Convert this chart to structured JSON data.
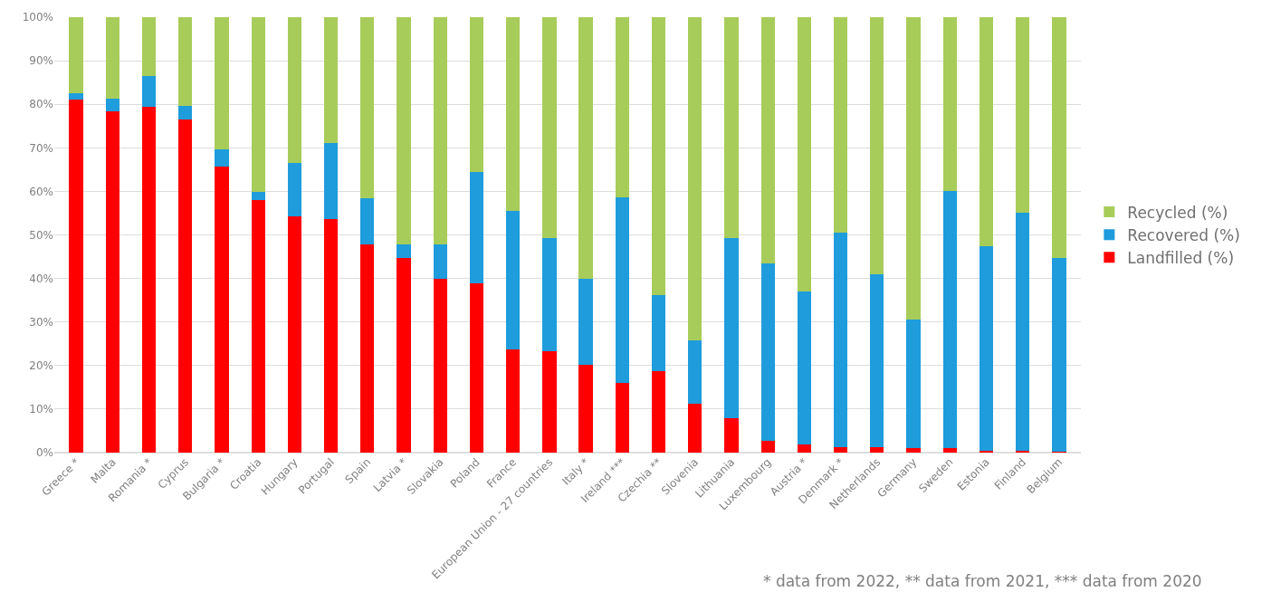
{
  "chart_data": {
    "type": "bar",
    "stacked": true,
    "categories": [
      "Greece *",
      "Malta",
      "Romania *",
      "Cyprus",
      "Bulgaria *",
      "Croatia",
      "Hungary",
      "Portugal",
      "Spain",
      "Latvia *",
      "Slovakia",
      "Poland",
      "France",
      "European Union - 27 countries",
      "Italy *",
      "Ireland ***",
      "Czechia **",
      "Slovenia",
      "Lithuania",
      "Luxembourg",
      "Austria *",
      "Denmark *",
      "Netherlands",
      "Germany",
      "Sweden",
      "Estonia",
      "Finland",
      "Belgium"
    ],
    "series": [
      {
        "name": "Landfilled (%)",
        "color": "#ff0000",
        "values": [
          81,
          78.3,
          79.5,
          76.5,
          65.8,
          58,
          54.2,
          53.6,
          47.8,
          44.6,
          40,
          38.8,
          23.8,
          23.2,
          20.1,
          16.1,
          18.8,
          11.3,
          7.8,
          2.6,
          1.9,
          1.3,
          1.3,
          1.0,
          1.0,
          0.4,
          0.4,
          0.2
        ]
      },
      {
        "name": "Recovered (%)",
        "color": "#1e9cdc",
        "values": [
          1.6,
          3.0,
          7.0,
          3.2,
          3.9,
          1.8,
          12.4,
          17.4,
          10.7,
          3.2,
          7.8,
          25.7,
          31.7,
          26.1,
          19.9,
          42.6,
          17.4,
          14.5,
          41.5,
          40.9,
          35.2,
          49.3,
          39.7,
          29.6,
          59.1,
          47.1,
          54.6,
          44.6
        ]
      },
      {
        "name": "Recycled (%)",
        "color": "#a8cc5a",
        "values": [
          17.4,
          18.7,
          13.5,
          20.3,
          30.3,
          40.2,
          33.4,
          29,
          41.5,
          52.2,
          52.2,
          35.5,
          44.5,
          50.7,
          60,
          41.3,
          63.8,
          74.2,
          50.7,
          56.5,
          62.9,
          49.4,
          59,
          69.4,
          39.9,
          52.5,
          45,
          55.2
        ]
      }
    ],
    "ylim": [
      0,
      100
    ],
    "yticks": [
      {
        "value": 0,
        "label": "0%"
      },
      {
        "value": 10,
        "label": "10%"
      },
      {
        "value": 20,
        "label": "20%"
      },
      {
        "value": 30,
        "label": "30%"
      },
      {
        "value": 40,
        "label": "40%"
      },
      {
        "value": 50,
        "label": "50%"
      },
      {
        "value": 60,
        "label": "60%"
      },
      {
        "value": 70,
        "label": "70%"
      },
      {
        "value": 80,
        "label": "80%"
      },
      {
        "value": 90,
        "label": "90%"
      },
      {
        "value": 100,
        "label": "100%"
      }
    ],
    "grid": "y",
    "legend": "right",
    "annotations": [
      "* data from 2022, ** data from 2021, *** data from 2020"
    ]
  }
}
